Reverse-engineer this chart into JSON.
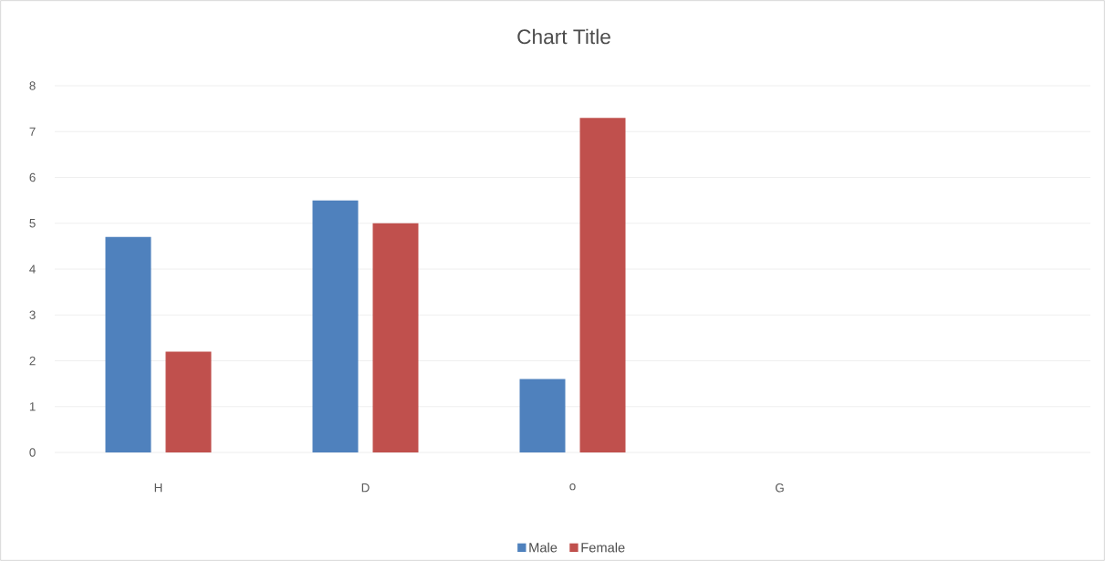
{
  "chart_data": {
    "type": "bar",
    "title": "Chart Title",
    "categories": [
      "H",
      "D",
      "o",
      "G",
      null
    ],
    "series": [
      {
        "name": "Male",
        "color": "#4f81bd",
        "values": [
          4.7,
          5.5,
          1.6,
          null,
          null
        ]
      },
      {
        "name": "Female",
        "color": "#c0504d",
        "values": [
          2.2,
          5.0,
          7.3,
          null,
          null
        ]
      }
    ],
    "ylim": [
      0,
      8
    ],
    "yticks": [
      0,
      1,
      2,
      3,
      4,
      5,
      6,
      7,
      8
    ],
    "grid": "y",
    "legend": "bottom"
  }
}
